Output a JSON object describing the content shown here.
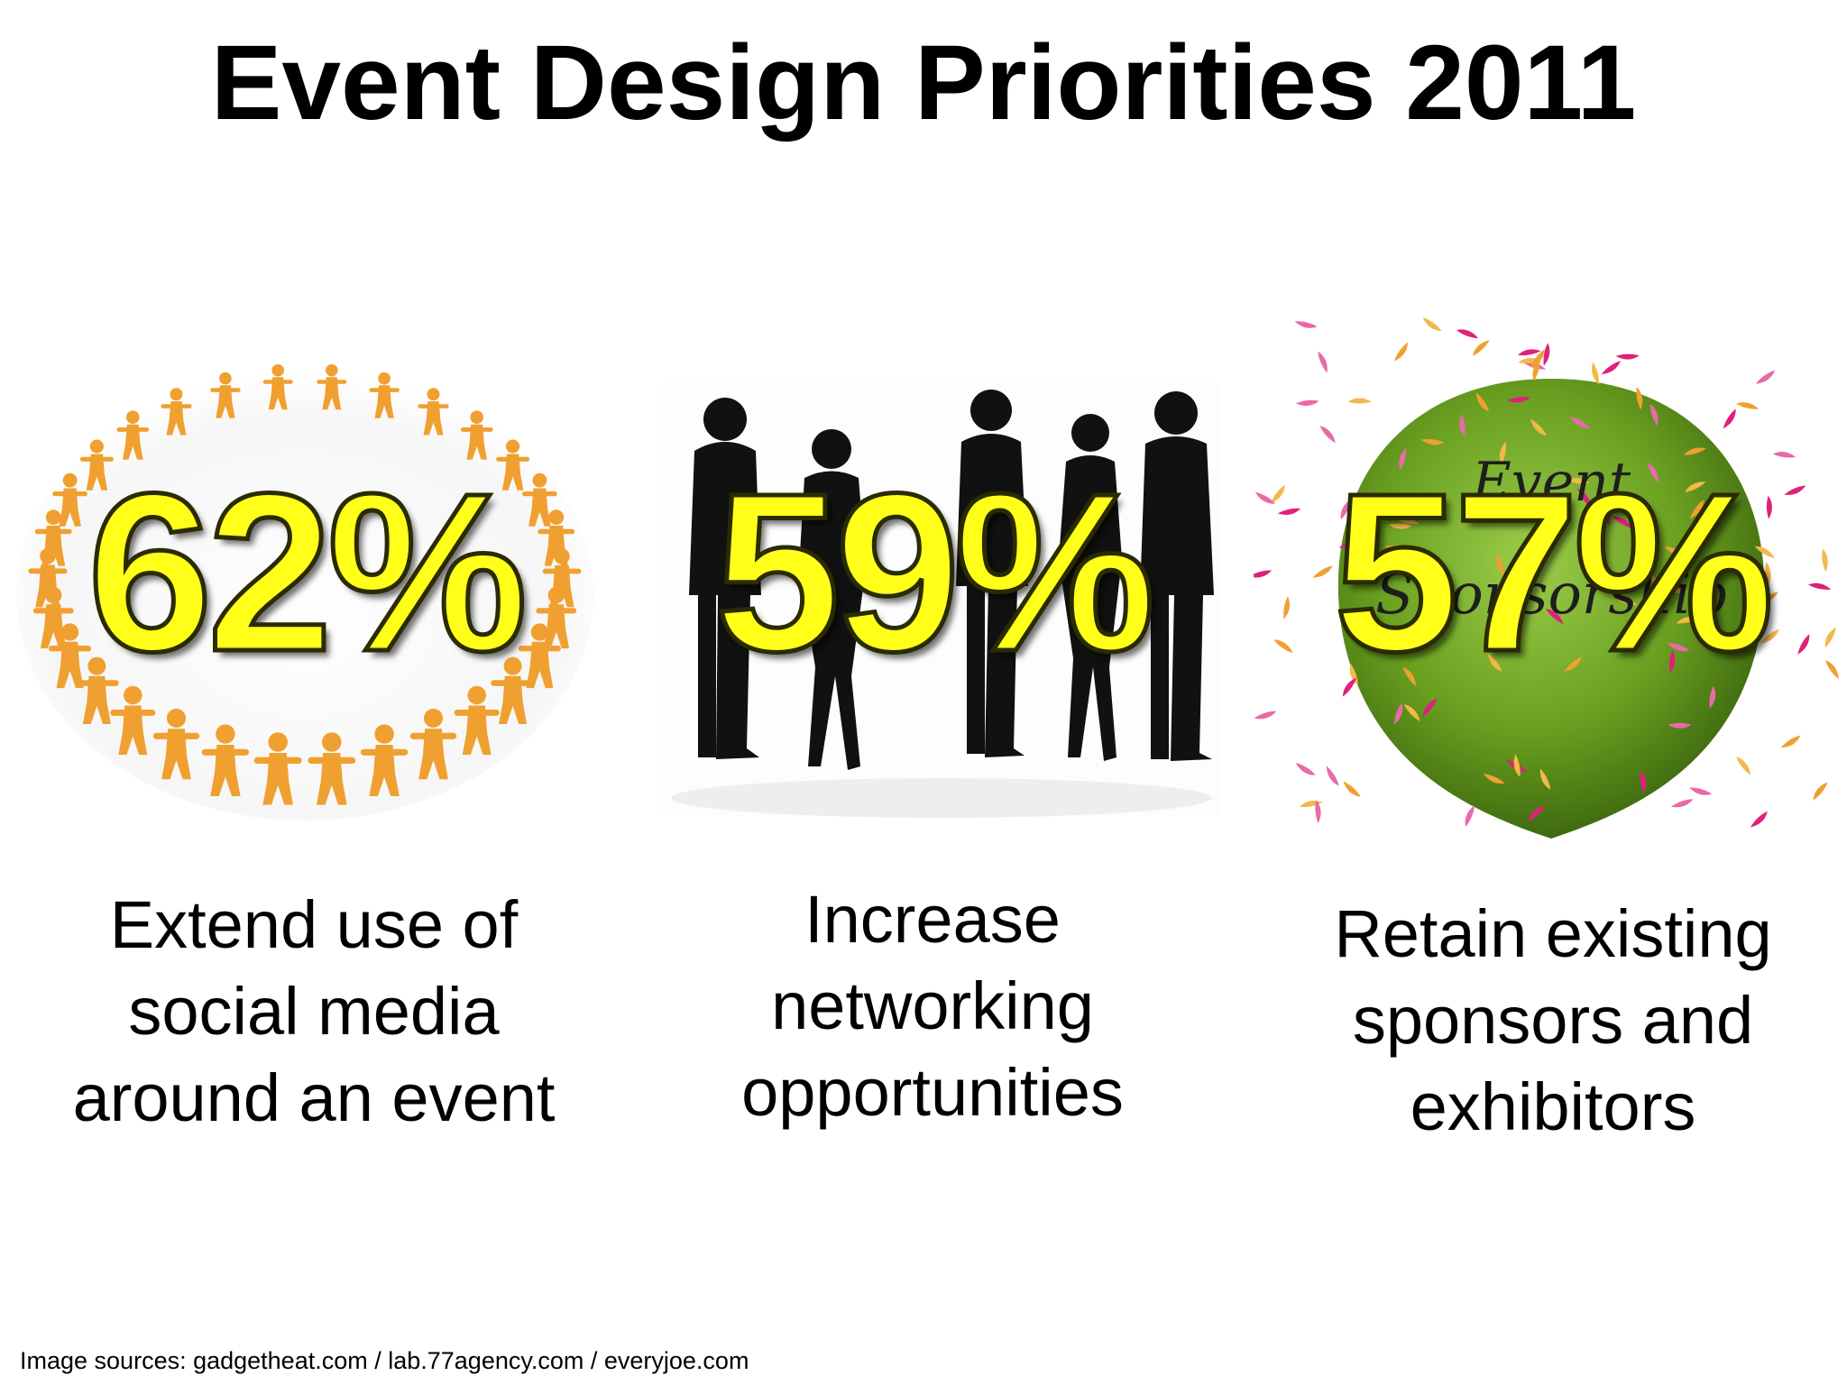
{
  "slide": {
    "title": "Event Design Priorities 2011",
    "source": "Image sources: gadgetheat.com / lab.77agency.com / everyjoe.com"
  },
  "colors": {
    "percent_fill": "#ffff1a",
    "percent_outline": "#2b2b00",
    "figures": "#f0a030",
    "silhouettes": "#111111",
    "balloon": "#6aa020"
  },
  "priorities": [
    {
      "percent": "62%",
      "caption": [
        "Extend use of",
        "social media",
        "around an event"
      ],
      "image": "people-circle-icon"
    },
    {
      "percent": "59%",
      "caption": [
        "Increase",
        "networking",
        "opportunities"
      ],
      "image": "networking-silhouettes"
    },
    {
      "percent": "57%",
      "caption": [
        "Retain existing",
        "sponsors and",
        "exhibitors"
      ],
      "image": "sponsorship-balloon",
      "image_text": [
        "Event",
        "Sponsorship"
      ]
    }
  ]
}
